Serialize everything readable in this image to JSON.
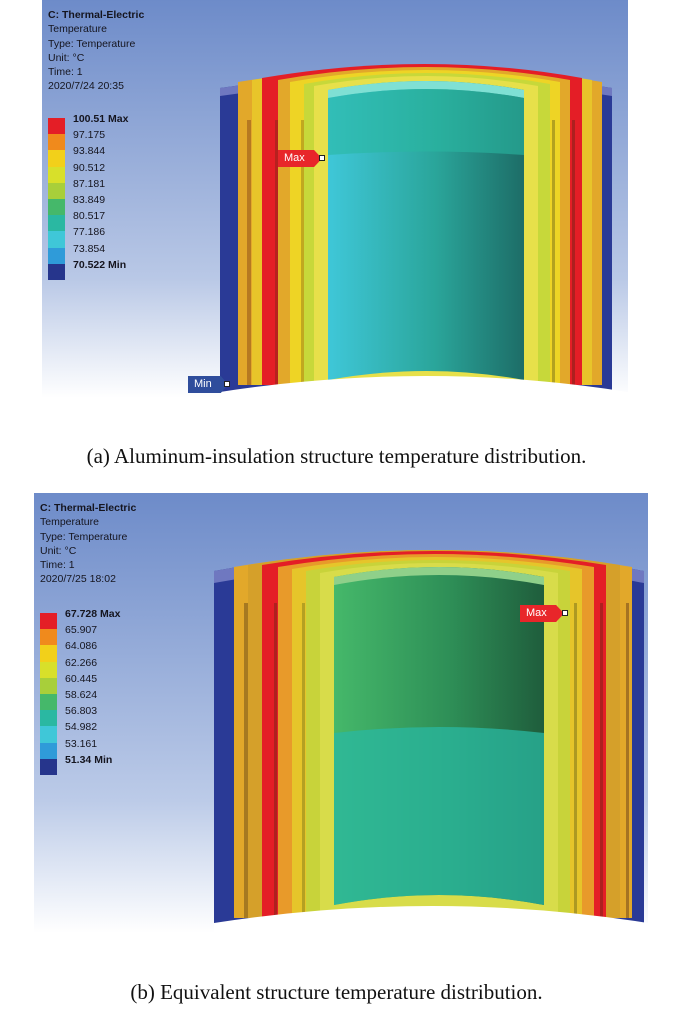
{
  "figures": [
    {
      "info": {
        "title": "C: Thermal-Electric",
        "line1": "Temperature",
        "line2": "Type: Temperature",
        "line3": "Unit: °C",
        "line4": "Time: 1",
        "line5": "2020/7/24 20:35"
      },
      "legend": [
        "100.51 Max",
        "97.175",
        "93.844",
        "90.512",
        "87.181",
        "83.849",
        "80.517",
        "77.186",
        "73.854",
        "70.522 Min"
      ],
      "max_label": "Max",
      "min_label": "Min",
      "caption": "(a) Aluminum-insulation structure temperature distribution."
    },
    {
      "info": {
        "title": "C: Thermal-Electric",
        "line1": "Temperature",
        "line2": "Type: Temperature",
        "line3": "Unit: °C",
        "line4": "Time: 1",
        "line5": "2020/7/25 18:02"
      },
      "legend": [
        "67.728 Max",
        "65.907",
        "64.086",
        "62.266",
        "60.445",
        "58.624",
        "56.803",
        "54.982",
        "53.161",
        "51.34 Min"
      ],
      "max_label": "Max",
      "caption": "(b) Equivalent structure temperature distribution."
    }
  ],
  "colors": {
    "contour": [
      "#e41e26",
      "#f08a1c",
      "#f2d01a",
      "#d8e02a",
      "#a8cf3a",
      "#45b86a",
      "#2ab8a2",
      "#3fc7d8",
      "#2f9bd9",
      "#26358c"
    ],
    "background_top": "#6d8bc9",
    "background_bottom": "#ffffff"
  }
}
